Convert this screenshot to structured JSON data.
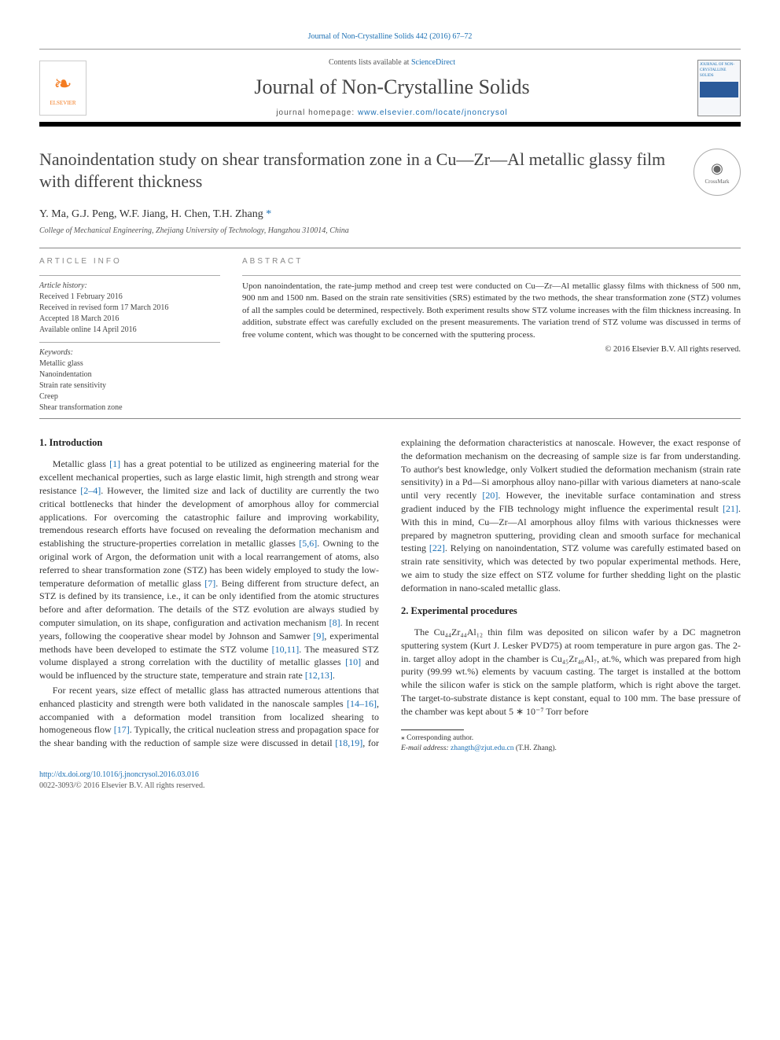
{
  "topRef": "Journal of Non-Crystalline Solids 442 (2016) 67–72",
  "banner": {
    "contentsPrefix": "Contents lists available at ",
    "contentsLink": "ScienceDirect",
    "journalName": "Journal of Non-Crystalline Solids",
    "homepagePrefix": "journal homepage: ",
    "homepageUrl": "www.elsevier.com/locate/jnoncrysol",
    "elsevierLabel": "ELSEVIER",
    "coverLabel": "JOURNAL OF NON-CRYSTALLINE SOLIDS"
  },
  "title": "Nanoindentation study on shear transformation zone in a Cu—Zr—Al metallic glassy film with different thickness",
  "crossmarkLabel": "CrossMark",
  "authorsLine": "Y. Ma, G.J. Peng, W.F. Jiang, H. Chen, T.H. Zhang ",
  "corrStar": "*",
  "affiliation": "College of Mechanical Engineering, Zhejiang University of Technology, Hangzhou 310014, China",
  "info": {
    "heading": "article info",
    "histLabel": "Article history:",
    "hist1": "Received 1 February 2016",
    "hist2": "Received in revised form 17 March 2016",
    "hist3": "Accepted 18 March 2016",
    "hist4": "Available online 14 April 2016",
    "kwLabel": "Keywords:",
    "kw1": "Metallic glass",
    "kw2": "Nanoindentation",
    "kw3": "Strain rate sensitivity",
    "kw4": "Creep",
    "kw5": "Shear transformation zone"
  },
  "abstract": {
    "heading": "abstract",
    "text": "Upon nanoindentation, the rate-jump method and creep test were conducted on Cu—Zr—Al metallic glassy films with thickness of 500 nm, 900 nm and 1500 nm. Based on the strain rate sensitivities (SRS) estimated by the two methods, the shear transformation zone (STZ) volumes of all the samples could be determined, respectively. Both experiment results show STZ volume increases with the film thickness increasing. In addition, substrate effect was carefully excluded on the present measurements. The variation trend of STZ volume was discussed in terms of free volume content, which was thought to be concerned with the sputtering process.",
    "copyright": "© 2016 Elsevier B.V. All rights reserved."
  },
  "sections": {
    "s1h": "1. Introduction",
    "s1p1a": "Metallic glass ",
    "ref1": "[1]",
    "s1p1b": " has a great potential to be utilized as engineering material for the excellent mechanical properties, such as large elastic limit, high strength and strong wear resistance ",
    "ref2_4": "[2–4]",
    "s1p1c": ". However, the limited size and lack of ductility are currently the two critical bottlenecks that hinder the development of amorphous alloy for commercial applications. For overcoming the catastrophic failure and improving workability, tremendous research efforts have focused on revealing the deformation mechanism and establishing the structure-properties correlation in metallic glasses ",
    "ref5_6": "[5,6]",
    "s1p1d": ". Owning to the original work of Argon, the deformation unit with a local rearrangement of atoms, also referred to shear transformation zone (STZ) has been widely employed to study the low-temperature deformation of metallic glass ",
    "ref7": "[7]",
    "s1p1e": ". Being different from structure defect, an STZ is defined by its transience, i.e., it can be only identified from the atomic structures before and after deformation. The details of the STZ evolution are always studied by computer simulation, on its shape, configuration and activation mechanism ",
    "ref8": "[8]",
    "s1p1f": ". In recent years, following the cooperative shear model by Johnson and Samwer ",
    "ref9": "[9]",
    "s1p1g": ", experimental methods have been developed to estimate the STZ volume ",
    "ref10_11": "[10,11]",
    "s1p1h": ". The measured STZ volume displayed a strong correlation with the ductility of metallic glasses ",
    "ref10": "[10]",
    "s1p1i": " and would be influenced by the structure state, temperature and strain rate ",
    "ref12_13": "[12,13]",
    "s1p1j": ".",
    "s1p2a": "For recent years, size effect of metallic glass has attracted numerous attentions that enhanced plasticity and strength were both validated in the nanoscale samples ",
    "ref14_16": "[14–16]",
    "s1p2b": ", accompanied with a deformation model transition from localized shearing to homogeneous flow ",
    "ref17": "[17]",
    "s1p2c": ". Typically, the critical nucleation stress and propagation space for the shear banding with the reduction of sample size were discussed in detail ",
    "ref18_19": "[18,19]",
    "s1p2d": ", for explaining the deformation characteristics at nanoscale. However, the exact response of the deformation mechanism on the decreasing of sample size is far from understanding. To author's best knowledge, only Volkert studied the deformation mechanism (strain rate sensitivity) in a Pd—Si amorphous alloy nano-pillar with various diameters at nano-scale until very recently ",
    "ref20": "[20]",
    "s1p2e": ". However, the inevitable surface contamination and stress gradient induced by the FIB technology might influence the experimental result ",
    "ref21": "[21]",
    "s1p2f": ". With this in mind, Cu—Zr—Al amorphous alloy films with various thicknesses were prepared by magnetron sputtering, providing clean and smooth surface for mechanical testing ",
    "ref22": "[22]",
    "s1p2g": ". Relying on nanoindentation, STZ volume was carefully estimated based on strain rate sensitivity, which was detected by two popular experimental methods. Here, we aim to study the size effect on STZ volume for further shedding light on the plastic deformation in nano-scaled metallic glass.",
    "s2h": "2. Experimental procedures",
    "s2p1": "The Cu₄₄Zr₄₄Al₁₂ thin film was deposited on silicon wafer by a DC magnetron sputtering system (Kurt J. Lesker PVD75) at room temperature in pure argon gas. The 2-in. target alloy adopt in the chamber is Cu₄₅Zr₄₈Al₇, at.%, which was prepared from high purity (99.99 wt.%) elements by vacuum casting. The target is installed at the bottom while the silicon wafer is stick on the sample platform, which is right above the target. The target-to-substrate distance is kept constant, equal to 100 mm. The base pressure of the chamber was kept about 5 ∗ 10⁻⁷ Torr before"
  },
  "footnote": {
    "starLabel": "⁎ Corresponding author.",
    "emailLabel": "E-mail address: ",
    "email": "zhangth@zjut.edu.cn",
    "emailSuffix": " (T.H. Zhang)."
  },
  "footer": {
    "doi": "http://dx.doi.org/10.1016/j.jnoncrysol.2016.03.016",
    "issn": "0022-3093/© 2016 Elsevier B.V. All rights reserved."
  },
  "colors": {
    "link": "#1b6fb3",
    "text": "#333333",
    "rule": "#000000"
  }
}
